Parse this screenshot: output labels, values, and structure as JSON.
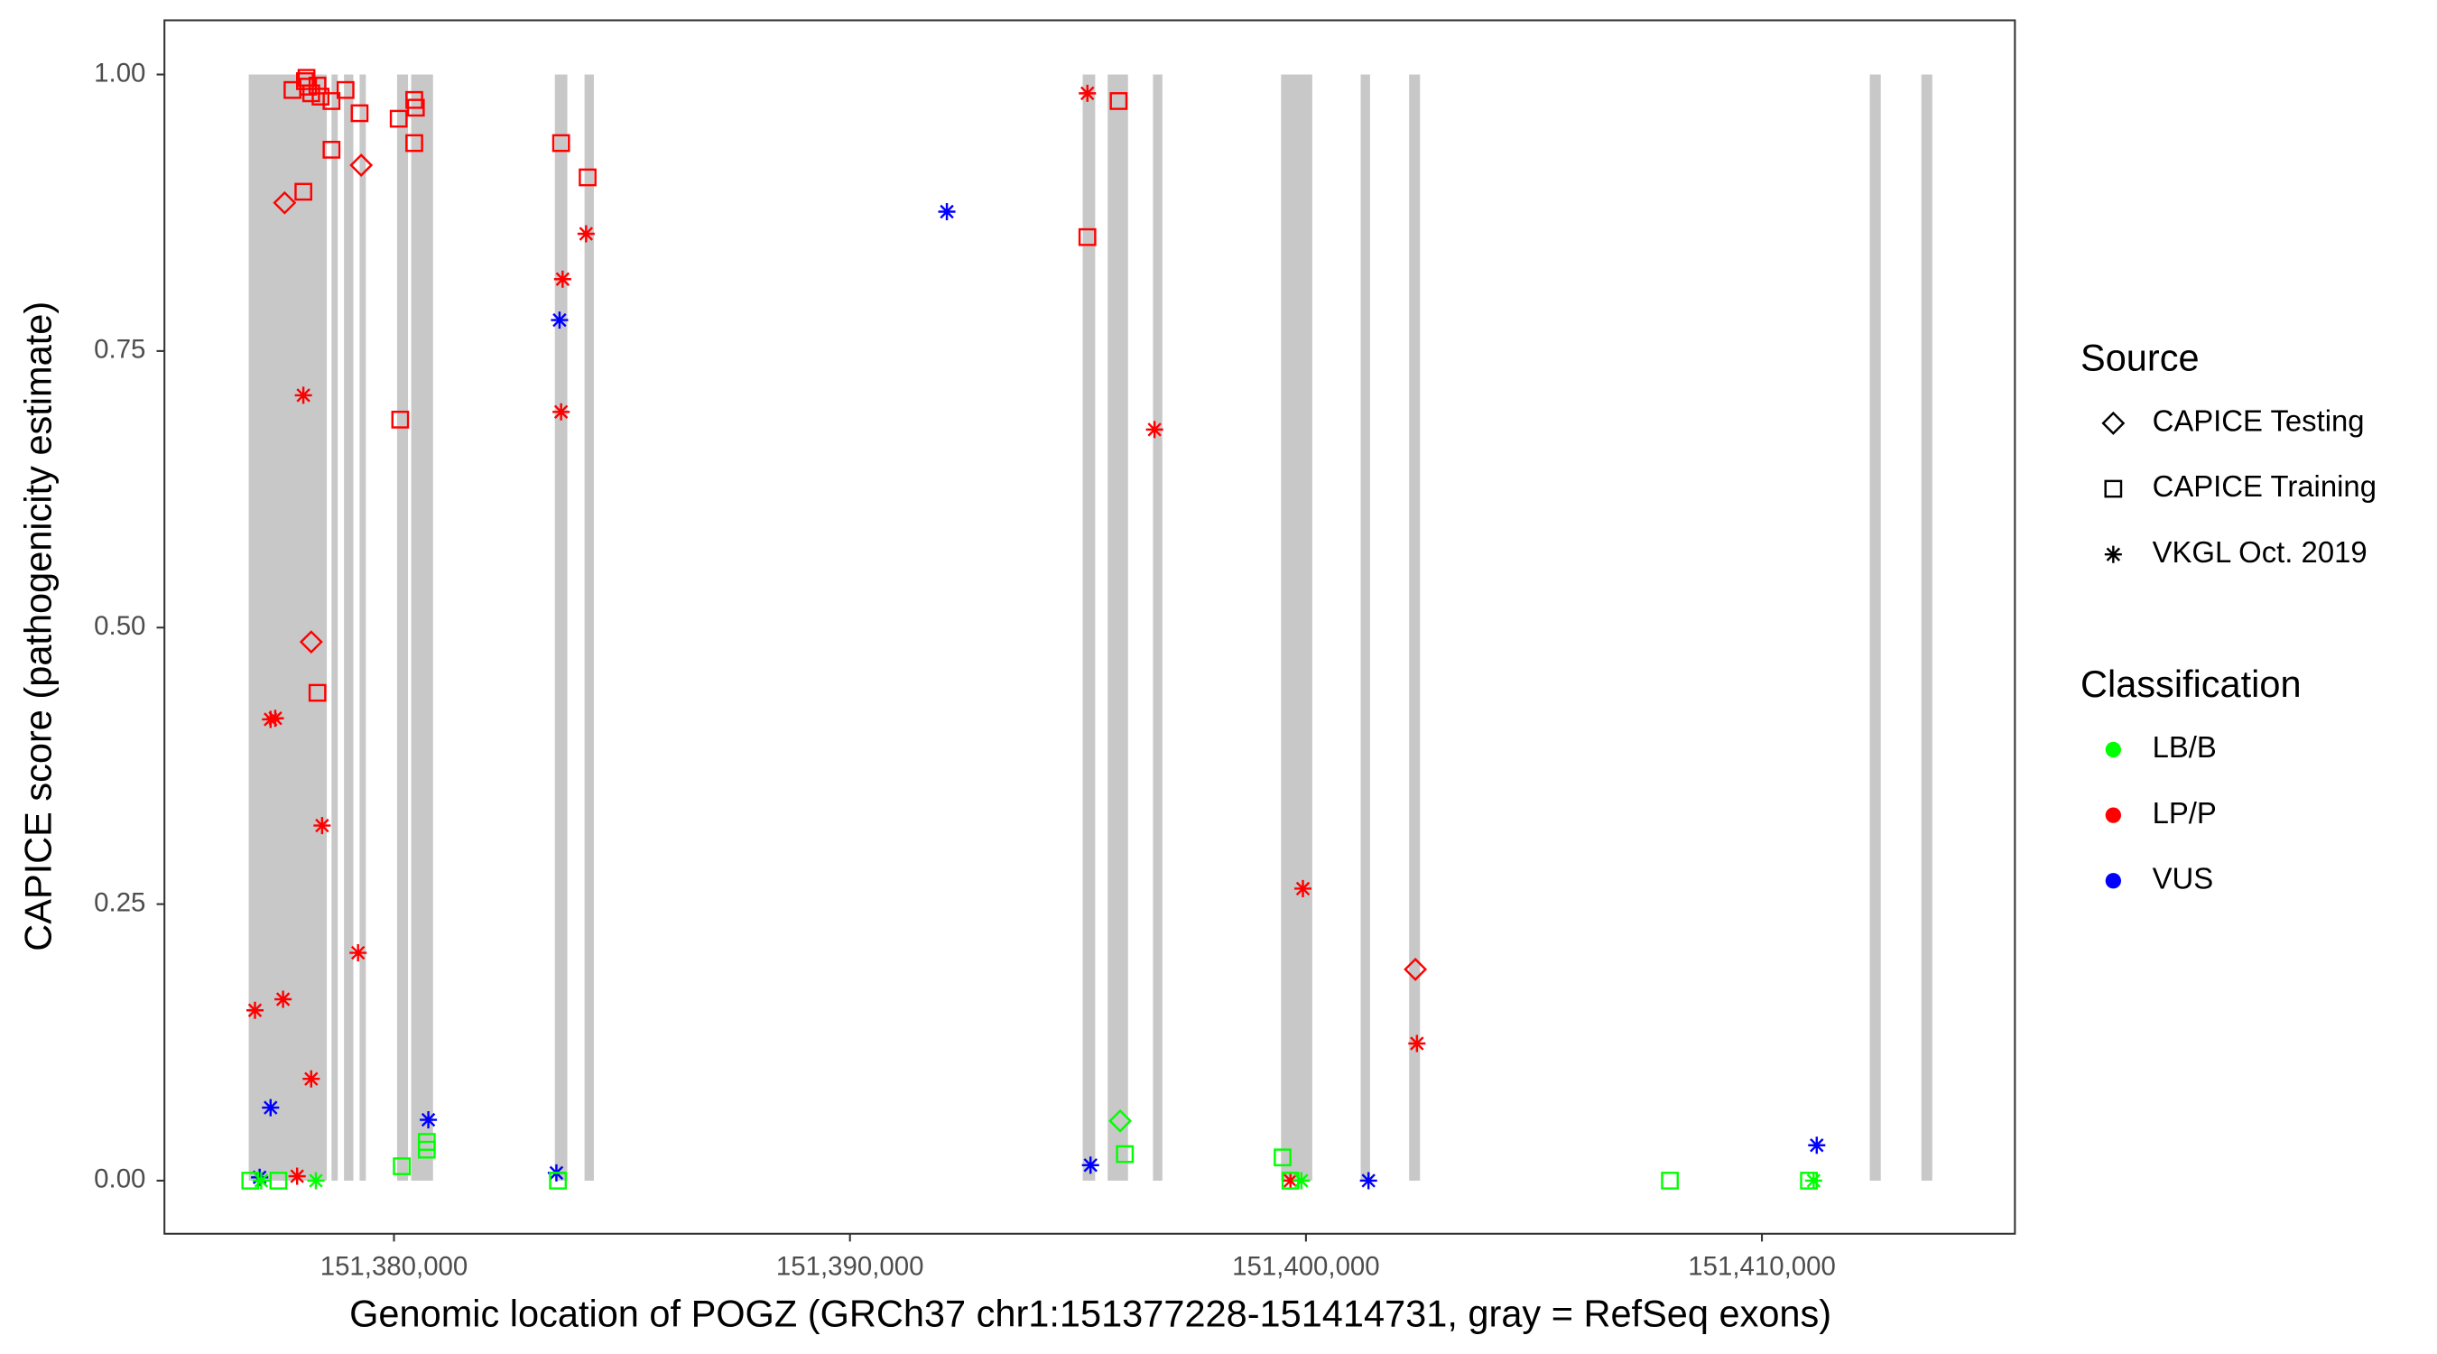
{
  "chart_data": {
    "type": "scatter",
    "x_label": "Genomic location of POGZ (GRCh37 chr1:151377228-151414731, gray = RefSeq exons)",
    "y_label": "CAPICE score (pathogenicity estimate)",
    "xlim": [
      151374966,
      151415548
    ],
    "ylim": [
      -0.048,
      1.049
    ],
    "xticks": [
      {
        "value": 151380000,
        "label": "151,380,000"
      },
      {
        "value": 151390000,
        "label": "151,390,000"
      },
      {
        "value": 151400000,
        "label": "151,400,000"
      },
      {
        "value": 151410000,
        "label": "151,410,000"
      }
    ],
    "yticks": [
      {
        "value": 0,
        "label": "0.00"
      },
      0.25,
      {
        "value": 0.5,
        "label": "0.50"
      },
      0.75,
      {
        "value": 1,
        "label": "1.00"
      }
    ],
    "exon_color": "#c8c8c8",
    "exons": [
      [
        151376815,
        151378527
      ],
      [
        151378630,
        151378767
      ],
      [
        151378904,
        151379109
      ],
      [
        151379246,
        151379383
      ],
      [
        151380068,
        151380308
      ],
      [
        151380377,
        151380856
      ],
      [
        151383528,
        151383802
      ],
      [
        151384179,
        151384384
      ],
      [
        151395104,
        151395378
      ],
      [
        151395652,
        151396098
      ],
      [
        151396646,
        151396851
      ],
      [
        151399454,
        151400139
      ],
      [
        151401201,
        151401406
      ],
      [
        151402263,
        151402502
      ],
      [
        151412366,
        151412606
      ],
      [
        151413497,
        151413736
      ]
    ],
    "legends": [
      {
        "title": "Source",
        "entries": [
          {
            "name": "CAPICE Testing",
            "shape": "diamond"
          },
          {
            "name": "CAPICE Training",
            "shape": "square"
          },
          {
            "name": "VKGL Oct. 2019",
            "shape": "asterisk"
          }
        ]
      },
      {
        "title": "Classification",
        "entries": [
          {
            "name": "LB/B",
            "color": "#00ff00"
          },
          {
            "name": "LP/P",
            "color": "#ff0000"
          },
          {
            "name": "VUS",
            "color": "#0000ff"
          }
        ]
      }
    ],
    "series": [
      {
        "shape": "square",
        "color": "#ff0000",
        "x": [
          151377774,
          151378048,
          151378082,
          151378116,
          151378185,
          151378322,
          151378390,
          151378630,
          151378938,
          151379246,
          151378630,
          151378013,
          151380103,
          151380445,
          151380480,
          151380445,
          151380137,
          151378322,
          151383665,
          151384247,
          151395207,
          151395892
        ],
        "values": [
          0.986,
          0.994,
          0.997,
          0.989,
          0.983,
          0.99,
          0.98,
          0.976,
          0.986,
          0.965,
          0.932,
          0.894,
          0.96,
          0.977,
          0.97,
          0.938,
          0.688,
          0.441,
          0.938,
          0.907,
          0.853,
          0.976
        ]
      },
      {
        "shape": "diamond",
        "color": "#ff0000",
        "x": [
          151377602,
          151379281,
          151378185,
          151402400
        ],
        "values": [
          0.884,
          0.918,
          0.487,
          0.191
        ]
      },
      {
        "shape": "asterisk",
        "color": "#ff0000",
        "x": [
          151378013,
          151377294,
          151377397,
          151378424,
          151379212,
          151376952,
          151377568,
          151378185,
          151377876,
          151383699,
          151384213,
          151383665,
          151395207,
          151396680,
          151399934,
          151402434,
          151399660
        ],
        "values": [
          0.71,
          0.417,
          0.418,
          0.321,
          0.206,
          0.154,
          0.164,
          0.092,
          0.004,
          0.815,
          0.856,
          0.695,
          0.983,
          0.679,
          0.264,
          0.124,
          0
        ]
      },
      {
        "shape": "asterisk",
        "color": "#0000ff",
        "x": [
          151392125,
          151383631,
          151377294,
          151380754,
          151377054,
          151383562,
          151395276,
          151401372,
          151411202
        ],
        "values": [
          0.876,
          0.778,
          0.066,
          0.055,
          0.003,
          0.007,
          0.014,
          0,
          0.032
        ]
      },
      {
        "shape": "square",
        "color": "#00ff00",
        "x": [
          151376849,
          151377465,
          151380171,
          151380719,
          151380719,
          151396029,
          151399488,
          151399660,
          151407982,
          151411031,
          151383596
        ],
        "values": [
          0,
          0,
          0.013,
          0.028,
          0.035,
          0.024,
          0.021,
          0,
          0,
          0,
          0
        ]
      },
      {
        "shape": "diamond",
        "color": "#00ff00",
        "x": [
          151395926
        ],
        "values": [
          0.054
        ]
      },
      {
        "shape": "asterisk",
        "color": "#00ff00",
        "x": [
          151378288,
          151399900,
          151411134,
          151377089
        ],
        "values": [
          0,
          0,
          0,
          0
        ]
      }
    ]
  }
}
